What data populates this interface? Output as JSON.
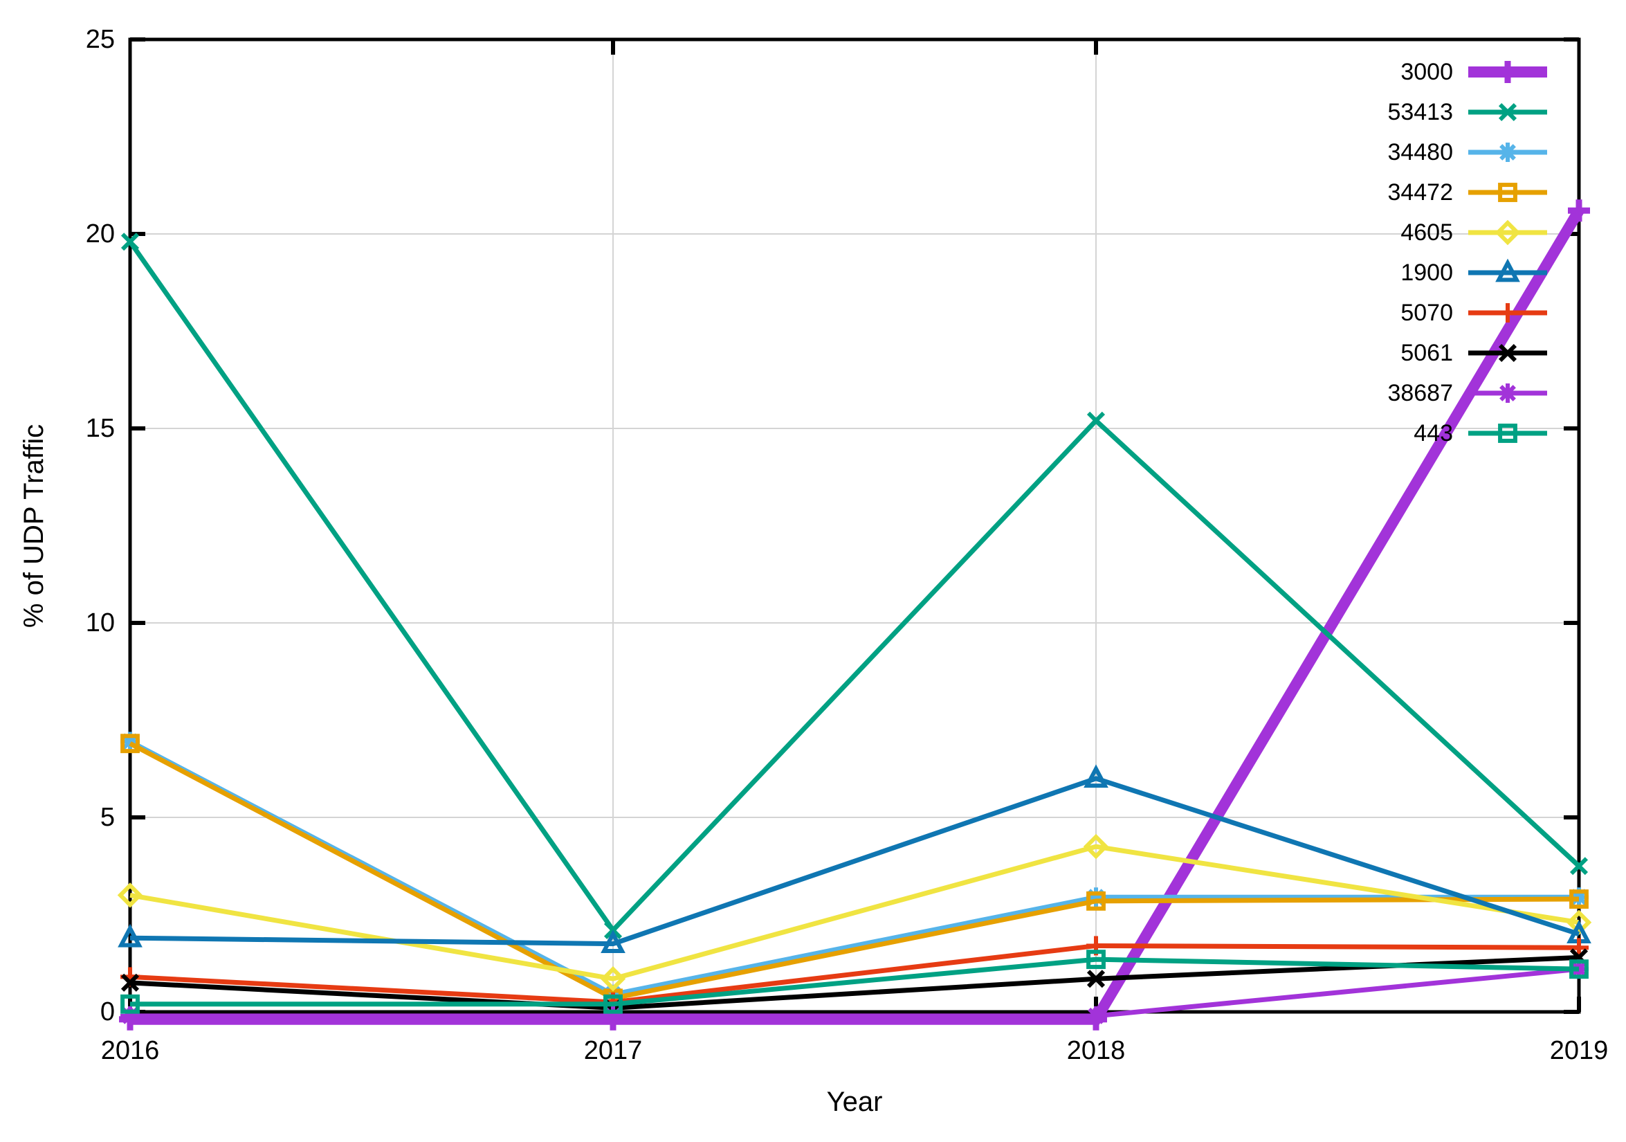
{
  "chart_data": {
    "type": "line",
    "title": "",
    "xlabel": "Year",
    "ylabel": "% of UDP Traffic",
    "x_categories": [
      "2016",
      "2017",
      "2018",
      "2019"
    ],
    "ylim": [
      0,
      25
    ],
    "yticks": [
      0,
      5,
      10,
      15,
      20,
      25
    ],
    "grid": true,
    "grid_color": "#d4d4d4",
    "border_color": "#000000",
    "legend_position": "top-right-inside",
    "series": [
      {
        "name": "3000",
        "color": "#a233d9",
        "marker": "plus",
        "line_width": 16,
        "values": [
          0,
          0,
          0,
          20.6
        ]
      },
      {
        "name": "53413",
        "color": "#00a183",
        "marker": "cross",
        "line_width": 7,
        "values": [
          19.8,
          2.1,
          15.2,
          3.75
        ]
      },
      {
        "name": "34480",
        "color": "#56b4e9",
        "marker": "asterisk",
        "line_width": 7,
        "values": [
          6.95,
          0.45,
          2.95,
          2.95
        ]
      },
      {
        "name": "34472",
        "color": "#e6a000",
        "marker": "square-open",
        "line_width": 7,
        "values": [
          6.9,
          0.35,
          2.85,
          2.9
        ]
      },
      {
        "name": "4605",
        "color": "#f0e442",
        "marker": "diamond-open",
        "line_width": 7,
        "values": [
          3.0,
          0.85,
          4.25,
          2.3
        ]
      },
      {
        "name": "1900",
        "color": "#0f76b2",
        "marker": "triangle-open",
        "line_width": 7,
        "values": [
          1.9,
          1.75,
          6.0,
          2.0
        ]
      },
      {
        "name": "5070",
        "color": "#e63b13",
        "marker": "plus",
        "line_width": 7,
        "values": [
          0.9,
          0.25,
          1.7,
          1.65
        ]
      },
      {
        "name": "5061",
        "color": "#000000",
        "marker": "cross",
        "line_width": 7,
        "values": [
          0.75,
          0.1,
          0.85,
          1.4
        ]
      },
      {
        "name": "38687",
        "color": "#a233d9",
        "marker": "asterisk",
        "line_width": 7,
        "values": [
          0,
          0,
          0,
          1.1
        ]
      },
      {
        "name": "443",
        "color": "#00a183",
        "marker": "square-open",
        "line_width": 7,
        "values": [
          0.2,
          0.2,
          1.35,
          1.1
        ]
      }
    ]
  }
}
